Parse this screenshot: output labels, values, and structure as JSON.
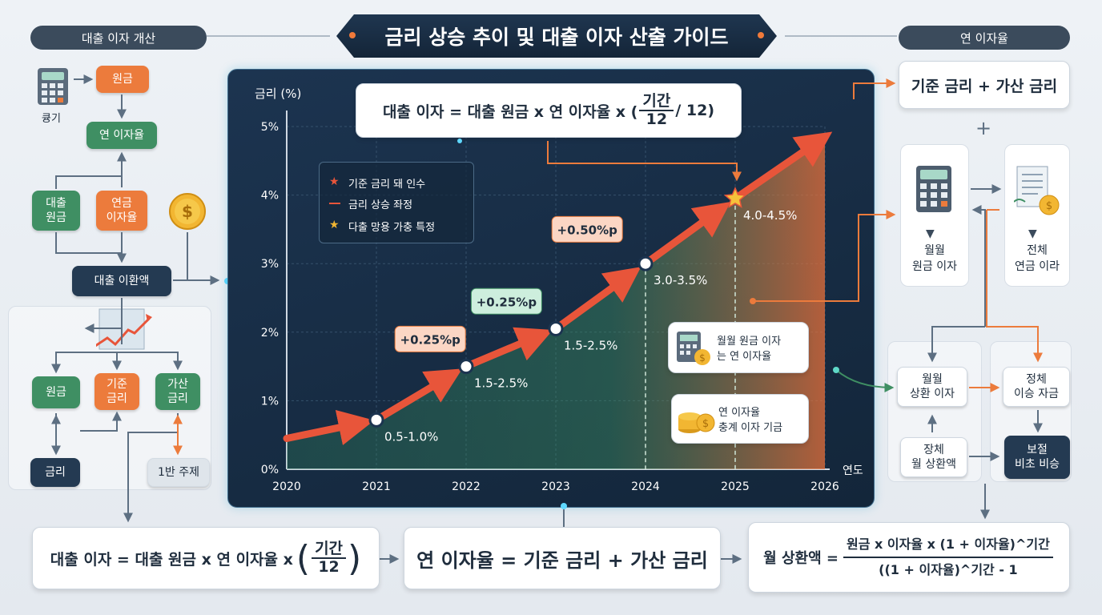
{
  "title": "금리 상승 추이 및 대출 이자 산출 가이드",
  "left_panel": {
    "header": "대출 이자 개산",
    "calc_label": "큥기",
    "principal": "원금",
    "annual_rate": "연 이자율",
    "loan_principal": "대출\n원금",
    "annual_interest_rate": "연금\n이자율",
    "loan_amount": "대출 이환액",
    "sub_principal": "원금",
    "sub_base": "기준\n금리",
    "sub_add": "가산\n금리",
    "rate": "금리",
    "half_subject": "1반 주제"
  },
  "right_panel": {
    "header": "연 이자율",
    "formula_top": "기준 금리 + 가산 금리",
    "plus": "+",
    "monthly_interest": "월월\n원금 이자",
    "total_annual": "전체\n연금 이라",
    "monthly_repay_interest": "월월\n상환 이자",
    "stagnant": "정체\n이승 자금",
    "fixed_monthly": "장체\n월 상환액",
    "supplement": "보절\n비초 비승"
  },
  "chart_formula": {
    "lhs": "대출 이자 = 대출 원금 x 연 이자율 x (",
    "num": "기간",
    "den": "12",
    "rhs": "/ 12)"
  },
  "legend": {
    "items": [
      "기준 금리 돼 인수",
      "금리 상승 좌정",
      "다출 망용 가충 특정"
    ]
  },
  "callouts": {
    "monthly": "월월 원금 이자\n는 연 이자율",
    "annual": "연 이자율\n충계 이자 기금"
  },
  "bottom": {
    "f1_lhs": "대출 이자 = 대출 원금 x 연 이자율 x",
    "f1_num": "기간",
    "f1_den": "12",
    "f2": "연 이자율 = 기준 금리 + 가산 금리",
    "f3_lhs": "월 상환액 =",
    "f3_num": "원금 x 이자율 x (1 + 이자율)^기간",
    "f3_den": "((1 + 이자율)^기간 - 1"
  },
  "colors": {
    "accent": "#ec7b3c",
    "green": "#3f8f63",
    "navy": "#243a52",
    "line": "#e8553a"
  },
  "chart_data": {
    "type": "line",
    "ylabel": "금리 (%)",
    "xlabel": "연도",
    "x": [
      2020,
      2021,
      2022,
      2023,
      2024,
      2025,
      2026
    ],
    "ylim": [
      0,
      5
    ],
    "y_ticks": [
      "0%",
      "1%",
      "2%",
      "3%",
      "4%",
      "5%"
    ],
    "grid": true,
    "legend_position": "top-left",
    "series": [
      {
        "points": [
          {
            "x": 2020,
            "y": 0.45
          },
          {
            "x": 2021,
            "y": 0.72
          },
          {
            "x": 2022,
            "y": 1.5
          },
          {
            "x": 2023,
            "y": 2.05
          },
          {
            "x": 2024,
            "y": 3.0
          },
          {
            "x": 2025,
            "y": 3.95
          },
          {
            "x": 2026,
            "y": 4.85
          }
        ]
      }
    ],
    "point_labels": [
      {
        "x": 2021,
        "y": 0.72,
        "text": "0.5-1.0%"
      },
      {
        "x": 2022,
        "y": 1.5,
        "text": "1.5-2.5%"
      },
      {
        "x": 2023,
        "y": 2.05,
        "text": "1.5-2.5%"
      },
      {
        "x": 2024,
        "y": 3.0,
        "text": "3.0-3.5%"
      },
      {
        "x": 2025,
        "y": 3.95,
        "text": "4.0-4.5%"
      }
    ],
    "change_labels": [
      {
        "x": 2021.6,
        "y": 1.9,
        "text": "+0.25%p",
        "style": "orange"
      },
      {
        "x": 2022.45,
        "y": 2.45,
        "text": "+0.25%p",
        "style": "green"
      },
      {
        "x": 2023.35,
        "y": 3.5,
        "text": "+0.50%p",
        "style": "orange"
      }
    ]
  }
}
